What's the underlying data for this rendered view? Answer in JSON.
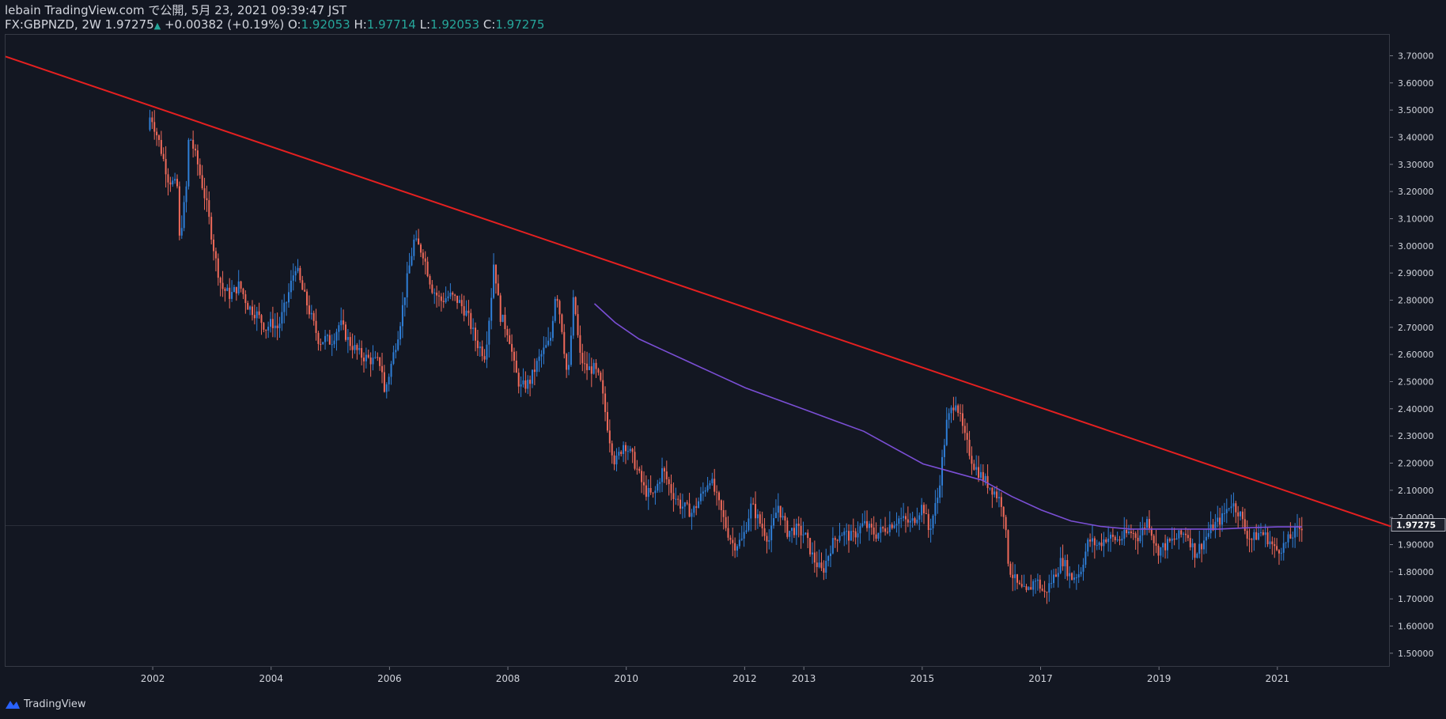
{
  "header": {
    "line1": "lebain TradingView.com で公開, 5月 23, 2021 09:39:47 JST",
    "symbol": "FX:GBPNZD, 2W",
    "price": "1.97275",
    "change": "+0.00382 (+0.19%)",
    "o_label": "O:",
    "o_value": "1.92053",
    "h_label": "H:",
    "h_value": "1.97714",
    "l_label": "L:",
    "l_value": "1.92053",
    "c_label": "C:",
    "c_value": "1.97275"
  },
  "footer": {
    "brand": "TradingView"
  },
  "colors": {
    "background": "#131722",
    "up": "#2f7fd8",
    "down": "#f06a5a",
    "trendline": "#e52020",
    "ma": "#7b4fd6",
    "grid": "#363a45",
    "text": "#d1d4dc"
  },
  "chart_data": {
    "type": "candlestick",
    "symbol": "FX:GBPNZD",
    "interval": "2W",
    "ylim": [
      1.45,
      3.78
    ],
    "xlim": [
      1999.5,
      2022.9
    ],
    "y_ticks": [
      "3.70000",
      "3.60000",
      "3.50000",
      "3.40000",
      "3.30000",
      "3.20000",
      "3.10000",
      "3.00000",
      "2.90000",
      "2.80000",
      "2.70000",
      "2.60000",
      "2.50000",
      "2.40000",
      "2.30000",
      "2.20000",
      "2.10000",
      "2.00000",
      "1.90000",
      "1.80000",
      "1.70000",
      "1.60000",
      "1.50000"
    ],
    "x_ticks": [
      {
        "label": "2002",
        "year": 2002
      },
      {
        "label": "2004",
        "year": 2004
      },
      {
        "label": "2006",
        "year": 2006
      },
      {
        "label": "2008",
        "year": 2008
      },
      {
        "label": "2010",
        "year": 2010
      },
      {
        "label": "2012",
        "year": 2012
      },
      {
        "label": "2013",
        "year": 2013
      },
      {
        "label": "2015",
        "year": 2015
      },
      {
        "label": "2017",
        "year": 2017
      },
      {
        "label": "2019",
        "year": 2019
      },
      {
        "label": "2021",
        "year": 2021
      }
    ],
    "last_price": "1.97275",
    "price_path": [
      [
        2001.9,
        3.43
      ],
      [
        2001.95,
        3.49
      ],
      [
        2002.1,
        3.38
      ],
      [
        2002.25,
        3.25
      ],
      [
        2002.4,
        3.22
      ],
      [
        2002.42,
        3.0
      ],
      [
        2002.55,
        3.2
      ],
      [
        2002.6,
        3.42
      ],
      [
        2002.75,
        3.3
      ],
      [
        2002.9,
        3.15
      ],
      [
        2003.05,
        2.95
      ],
      [
        2003.15,
        2.85
      ],
      [
        2003.3,
        2.82
      ],
      [
        2003.45,
        2.86
      ],
      [
        2003.6,
        2.78
      ],
      [
        2003.75,
        2.75
      ],
      [
        2003.9,
        2.7
      ],
      [
        2004.0,
        2.72
      ],
      [
        2004.1,
        2.7
      ],
      [
        2004.25,
        2.8
      ],
      [
        2004.4,
        2.93
      ],
      [
        2004.5,
        2.85
      ],
      [
        2004.65,
        2.75
      ],
      [
        2004.8,
        2.65
      ],
      [
        2004.9,
        2.66
      ],
      [
        2005.0,
        2.65
      ],
      [
        2005.15,
        2.72
      ],
      [
        2005.3,
        2.65
      ],
      [
        2005.5,
        2.6
      ],
      [
        2005.7,
        2.58
      ],
      [
        2005.85,
        2.57
      ],
      [
        2005.9,
        2.46
      ],
      [
        2006.0,
        2.55
      ],
      [
        2006.15,
        2.7
      ],
      [
        2006.3,
        2.9
      ],
      [
        2006.4,
        3.02
      ],
      [
        2006.55,
        2.98
      ],
      [
        2006.7,
        2.85
      ],
      [
        2006.85,
        2.8
      ],
      [
        2007.0,
        2.82
      ],
      [
        2007.15,
        2.8
      ],
      [
        2007.3,
        2.75
      ],
      [
        2007.45,
        2.65
      ],
      [
        2007.6,
        2.6
      ],
      [
        2007.7,
        2.8
      ],
      [
        2007.75,
        2.95
      ],
      [
        2007.85,
        2.75
      ],
      [
        2008.0,
        2.68
      ],
      [
        2008.1,
        2.55
      ],
      [
        2008.2,
        2.48
      ],
      [
        2008.35,
        2.5
      ],
      [
        2008.5,
        2.58
      ],
      [
        2008.6,
        2.62
      ],
      [
        2008.7,
        2.65
      ],
      [
        2008.8,
        2.85
      ],
      [
        2008.9,
        2.7
      ],
      [
        2009.0,
        2.5
      ],
      [
        2009.1,
        2.82
      ],
      [
        2009.2,
        2.6
      ],
      [
        2009.3,
        2.55
      ],
      [
        2009.45,
        2.55
      ],
      [
        2009.55,
        2.5
      ],
      [
        2009.7,
        2.3
      ],
      [
        2009.8,
        2.2
      ],
      [
        2009.95,
        2.28
      ],
      [
        2010.1,
        2.22
      ],
      [
        2010.3,
        2.1
      ],
      [
        2010.45,
        2.08
      ],
      [
        2010.6,
        2.18
      ],
      [
        2010.75,
        2.1
      ],
      [
        2010.9,
        2.05
      ],
      [
        2011.1,
        2.02
      ],
      [
        2011.25,
        2.08
      ],
      [
        2011.4,
        2.15
      ],
      [
        2011.55,
        2.05
      ],
      [
        2011.7,
        1.95
      ],
      [
        2011.8,
        1.9
      ],
      [
        2011.95,
        1.92
      ],
      [
        2012.1,
        2.05
      ],
      [
        2012.25,
        1.98
      ],
      [
        2012.4,
        1.92
      ],
      [
        2012.55,
        2.05
      ],
      [
        2012.7,
        1.95
      ],
      [
        2012.85,
        1.96
      ],
      [
        2013.0,
        1.94
      ],
      [
        2013.15,
        1.85
      ],
      [
        2013.3,
        1.8
      ],
      [
        2013.45,
        1.9
      ],
      [
        2013.6,
        1.95
      ],
      [
        2013.8,
        1.93
      ],
      [
        2014.0,
        1.98
      ],
      [
        2014.2,
        1.94
      ],
      [
        2014.4,
        1.97
      ],
      [
        2014.6,
        2.0
      ],
      [
        2014.8,
        1.98
      ],
      [
        2015.0,
        2.05
      ],
      [
        2015.1,
        1.95
      ],
      [
        2015.25,
        2.08
      ],
      [
        2015.4,
        2.35
      ],
      [
        2015.55,
        2.44
      ],
      [
        2015.7,
        2.3
      ],
      [
        2015.85,
        2.2
      ],
      [
        2016.0,
        2.15
      ],
      [
        2016.2,
        2.1
      ],
      [
        2016.35,
        2.05
      ],
      [
        2016.45,
        1.82
      ],
      [
        2016.6,
        1.75
      ],
      [
        2016.75,
        1.72
      ],
      [
        2016.9,
        1.78
      ],
      [
        2017.05,
        1.72
      ],
      [
        2017.2,
        1.78
      ],
      [
        2017.35,
        1.85
      ],
      [
        2017.5,
        1.78
      ],
      [
        2017.65,
        1.8
      ],
      [
        2017.8,
        1.92
      ],
      [
        2017.95,
        1.9
      ],
      [
        2018.1,
        1.93
      ],
      [
        2018.3,
        1.92
      ],
      [
        2018.5,
        1.95
      ],
      [
        2018.65,
        1.93
      ],
      [
        2018.8,
        2.0
      ],
      [
        2018.95,
        1.88
      ],
      [
        2019.1,
        1.9
      ],
      [
        2019.3,
        1.93
      ],
      [
        2019.45,
        1.95
      ],
      [
        2019.6,
        1.87
      ],
      [
        2019.75,
        1.92
      ],
      [
        2019.9,
        1.97
      ],
      [
        2020.05,
        2.0
      ],
      [
        2020.2,
        2.06
      ],
      [
        2020.35,
        2.02
      ],
      [
        2020.45,
        1.95
      ],
      [
        2020.55,
        1.92
      ],
      [
        2020.7,
        1.95
      ],
      [
        2020.85,
        1.92
      ],
      [
        2020.95,
        1.88
      ],
      [
        2021.1,
        1.9
      ],
      [
        2021.25,
        1.94
      ],
      [
        2021.35,
        1.96
      ],
      [
        2021.4,
        1.9727
      ]
    ],
    "trendline": [
      [
        1999.5,
        3.7
      ],
      [
        2022.9,
        1.97
      ]
    ],
    "moving_average": [
      [
        2009.45,
        2.79
      ],
      [
        2009.8,
        2.72
      ],
      [
        2010.2,
        2.66
      ],
      [
        2010.6,
        2.62
      ],
      [
        2011.0,
        2.58
      ],
      [
        2011.5,
        2.53
      ],
      [
        2012.0,
        2.48
      ],
      [
        2012.5,
        2.44
      ],
      [
        2013.0,
        2.4
      ],
      [
        2013.5,
        2.36
      ],
      [
        2014.0,
        2.32
      ],
      [
        2014.5,
        2.26
      ],
      [
        2015.0,
        2.2
      ],
      [
        2015.5,
        2.17
      ],
      [
        2016.0,
        2.14
      ],
      [
        2016.5,
        2.08
      ],
      [
        2017.0,
        2.03
      ],
      [
        2017.5,
        1.99
      ],
      [
        2018.0,
        1.97
      ],
      [
        2018.5,
        1.96
      ],
      [
        2019.0,
        1.96
      ],
      [
        2019.5,
        1.96
      ],
      [
        2020.0,
        1.96
      ],
      [
        2020.5,
        1.965
      ],
      [
        2021.0,
        1.968
      ],
      [
        2021.4,
        1.968
      ]
    ]
  }
}
